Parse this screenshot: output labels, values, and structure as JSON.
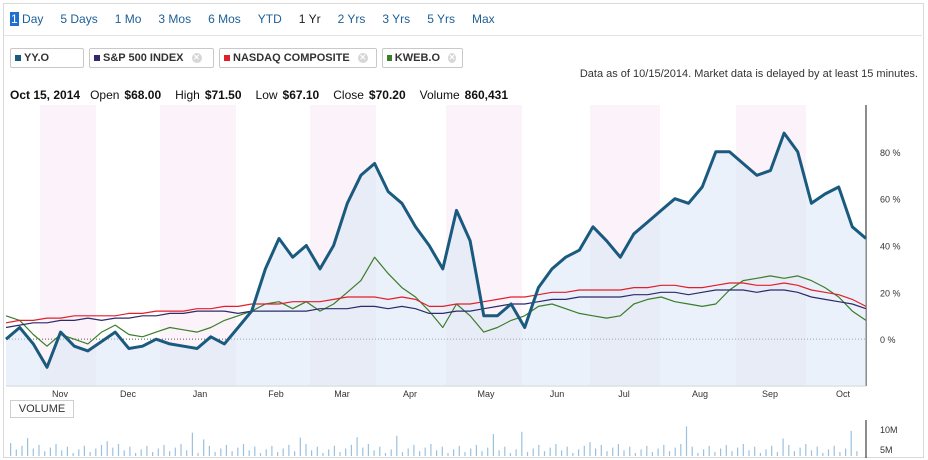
{
  "tabs": [
    {
      "label": "1 Day",
      "state": "selected-first-char"
    },
    {
      "label": "5 Days"
    },
    {
      "label": "1 Mo"
    },
    {
      "label": "3 Mos"
    },
    {
      "label": "6 Mos"
    },
    {
      "label": "YTD"
    },
    {
      "label": "1 Yr",
      "state": "current"
    },
    {
      "label": "2 Yrs"
    },
    {
      "label": "3 Yrs"
    },
    {
      "label": "5 Yrs"
    },
    {
      "label": "Max"
    }
  ],
  "comparisons": [
    {
      "label": "YY.O",
      "color": "#1a5a7e",
      "removable": false
    },
    {
      "label": "S&P 500 INDEX",
      "color": "#2e2a6b",
      "removable": true
    },
    {
      "label": "NASDAQ COMPOSITE",
      "color": "#e0202b",
      "removable": true
    },
    {
      "label": "KWEB.O",
      "color": "#3b7d2a",
      "removable": true
    }
  ],
  "delay_notice": "Data as of 10/15/2014. Market data is delayed by at least 15 minutes.",
  "quote": {
    "date": "Oct 15, 2014",
    "open_label": "Open",
    "open": "$68.00",
    "high_label": "High",
    "high": "$71.50",
    "low_label": "Low",
    "low": "$67.10",
    "close_label": "Close",
    "close": "$70.20",
    "volume_label": "Volume",
    "volume": "860,431"
  },
  "volume_button": "VOLUME",
  "chart_data": {
    "type": "line",
    "x_labels": [
      "Nov",
      "Dec",
      "Jan",
      "Feb",
      "Mar",
      "Apr",
      "May",
      "Jun",
      "Jul",
      "Aug",
      "Sep",
      "Oct"
    ],
    "y_ticks": [
      "80 %",
      "60 %",
      "40 %",
      "20 %",
      "0 %"
    ],
    "ylim": [
      -20,
      100
    ],
    "volume_ticks": [
      "10M",
      "5M"
    ],
    "series": [
      {
        "name": "YY.O",
        "color": "#1a5a7e",
        "values": [
          0,
          5,
          -2,
          -12,
          3,
          -3,
          -5,
          -1,
          3,
          -4,
          -3,
          0,
          -2,
          -3,
          -4,
          1,
          -2,
          5,
          12,
          30,
          43,
          35,
          40,
          30,
          40,
          58,
          70,
          75,
          63,
          58,
          48,
          40,
          30,
          55,
          42,
          10,
          10,
          15,
          5,
          22,
          30,
          35,
          38,
          48,
          42,
          35,
          45,
          50,
          55,
          60,
          58,
          65,
          80,
          80,
          75,
          70,
          72,
          88,
          80,
          58,
          62,
          65,
          48,
          43
        ]
      },
      {
        "name": "S&P 500 INDEX",
        "color": "#2e2a6b",
        "values": [
          5,
          6,
          7,
          7,
          8,
          8,
          9,
          8,
          9,
          9,
          10,
          10,
          11,
          11,
          12,
          12,
          12,
          11,
          12,
          12,
          12,
          12,
          12,
          13,
          13,
          13,
          14,
          14,
          13,
          14,
          13,
          11,
          11,
          12,
          12,
          13,
          14,
          15,
          15,
          16,
          17,
          17,
          18,
          18,
          18,
          18,
          19,
          19,
          20,
          20,
          19,
          20,
          21,
          21,
          21,
          20,
          21,
          21,
          20,
          18,
          17,
          16,
          15,
          13
        ]
      },
      {
        "name": "NASDAQ COMPOSITE",
        "color": "#e0202b",
        "values": [
          7,
          8,
          8,
          9,
          9,
          10,
          10,
          10,
          10,
          11,
          11,
          12,
          12,
          12,
          13,
          13,
          14,
          14,
          15,
          15,
          15,
          16,
          16,
          16,
          17,
          18,
          18,
          18,
          17,
          18,
          17,
          14,
          14,
          15,
          15,
          16,
          17,
          18,
          18,
          19,
          20,
          20,
          21,
          21,
          21,
          21,
          22,
          22,
          23,
          23,
          22,
          22,
          23,
          24,
          24,
          23,
          23,
          24,
          23,
          21,
          20,
          19,
          17,
          14
        ]
      },
      {
        "name": "KWEB.O",
        "color": "#3b7d2a",
        "values": [
          10,
          8,
          2,
          -3,
          2,
          0,
          -2,
          3,
          6,
          2,
          1,
          3,
          5,
          4,
          3,
          5,
          8,
          10,
          12,
          15,
          16,
          13,
          16,
          12,
          15,
          20,
          25,
          35,
          28,
          22,
          18,
          12,
          5,
          15,
          10,
          3,
          5,
          8,
          10,
          14,
          15,
          13,
          11,
          10,
          9,
          10,
          15,
          17,
          18,
          16,
          15,
          14,
          15,
          21,
          25,
          26,
          27,
          26,
          27,
          25,
          22,
          18,
          12,
          8
        ]
      }
    ]
  }
}
